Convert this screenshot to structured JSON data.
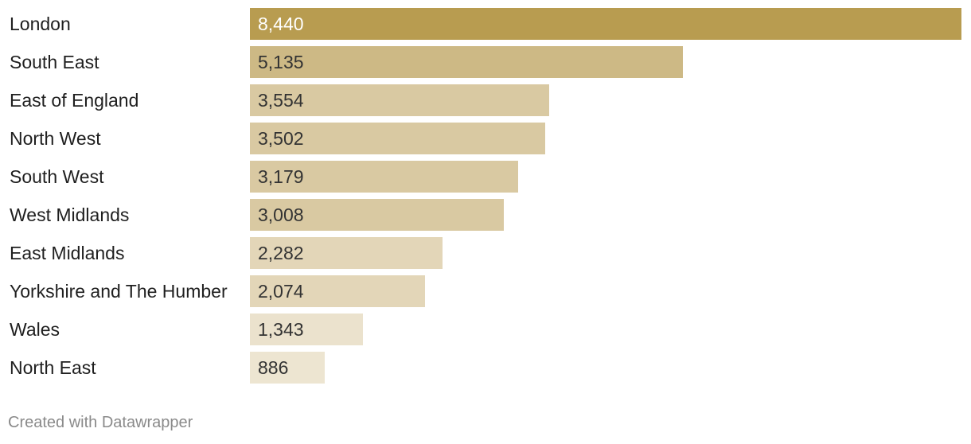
{
  "chart_data": {
    "type": "bar",
    "orientation": "horizontal",
    "title": "",
    "xlabel": "",
    "ylabel": "",
    "categories": [
      "London",
      "South East",
      "East of England",
      "North West",
      "South West",
      "West Midlands",
      "East Midlands",
      "Yorkshire and The Humber",
      "Wales",
      "North East"
    ],
    "values": [
      8440,
      5135,
      3554,
      3502,
      3179,
      3008,
      2282,
      2074,
      1343,
      886
    ],
    "value_labels": [
      "8,440",
      "5,135",
      "3,554",
      "3,502",
      "3,179",
      "3,008",
      "2,282",
      "2,074",
      "1,343",
      "886"
    ],
    "bar_colors": [
      "#b89c50",
      "#cdb985",
      "#d9c9a2",
      "#d9c9a2",
      "#d9c9a2",
      "#d9c9a2",
      "#e3d6b8",
      "#e3d6b8",
      "#ebe2cd",
      "#ede5d1"
    ],
    "value_label_colors": [
      "#ffffff",
      "#333333",
      "#333333",
      "#333333",
      "#333333",
      "#333333",
      "#333333",
      "#333333",
      "#333333",
      "#333333"
    ],
    "xlim": [
      0,
      8440
    ],
    "grid": false,
    "legend": "none"
  },
  "footer": {
    "credit": "Created with Datawrapper"
  }
}
